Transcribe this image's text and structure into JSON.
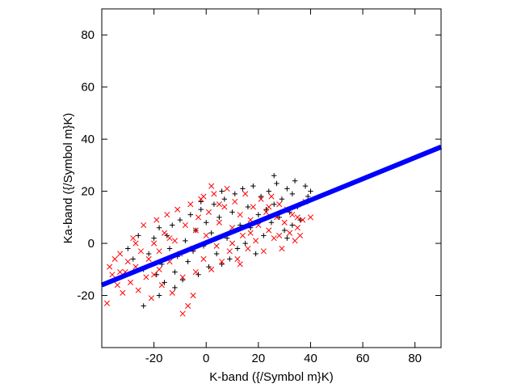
{
  "chart_data": {
    "type": "scatter",
    "title": "",
    "xlabel": "K-band ({/Symbol m}K)",
    "ylabel": "Ka-band ({/Symbol m}K)",
    "xlim": [
      -40,
      90
    ],
    "ylim": [
      -40,
      90
    ],
    "xticks": [
      "-20",
      "0",
      "20",
      "40",
      "60",
      "80"
    ],
    "yticks": [
      "-20",
      "0",
      "20",
      "40",
      "60",
      "80"
    ],
    "xtick_values": [
      -20,
      0,
      20,
      40,
      60,
      80
    ],
    "ytick_values": [
      -20,
      0,
      20,
      40,
      60,
      80
    ],
    "grid": false,
    "legend": "none",
    "series": [
      {
        "marker": "plus",
        "color": "#000000",
        "values": [
          [
            -28,
            -6
          ],
          [
            -24,
            -10
          ],
          [
            -22,
            -4
          ],
          [
            -20,
            2
          ],
          [
            -19,
            -12
          ],
          [
            -18,
            6
          ],
          [
            -17,
            -8
          ],
          [
            -16,
            -15
          ],
          [
            -15,
            3
          ],
          [
            -14,
            -2
          ],
          [
            -13,
            7
          ],
          [
            -12,
            -11
          ],
          [
            -11,
            -5
          ],
          [
            -10,
            9
          ],
          [
            -9,
            -14
          ],
          [
            -8,
            1
          ],
          [
            -7,
            -7
          ],
          [
            -6,
            11
          ],
          [
            -5,
            -3
          ],
          [
            -4,
            5
          ],
          [
            -3,
            -12
          ],
          [
            -2,
            13
          ],
          [
            -1,
            -1
          ],
          [
            0,
            8
          ],
          [
            1,
            -9
          ],
          [
            2,
            4
          ],
          [
            3,
            15
          ],
          [
            4,
            -4
          ],
          [
            5,
            10
          ],
          [
            6,
            -8
          ],
          [
            7,
            17
          ],
          [
            8,
            2
          ],
          [
            9,
            -6
          ],
          [
            10,
            12
          ],
          [
            11,
            19
          ],
          [
            12,
            -2
          ],
          [
            13,
            7
          ],
          [
            14,
            21
          ],
          [
            15,
            0
          ],
          [
            16,
            14
          ],
          [
            17,
            6
          ],
          [
            18,
            22
          ],
          [
            19,
            -4
          ],
          [
            20,
            11
          ],
          [
            21,
            18
          ],
          [
            22,
            3
          ],
          [
            23,
            13
          ],
          [
            24,
            20
          ],
          [
            25,
            8
          ],
          [
            26,
            15
          ],
          [
            27,
            23
          ],
          [
            28,
            10
          ],
          [
            29,
            17
          ],
          [
            30,
            5
          ],
          [
            31,
            21
          ],
          [
            32,
            12
          ],
          [
            33,
            19
          ],
          [
            34,
            24
          ],
          [
            35,
            14
          ],
          [
            36,
            9
          ],
          [
            38,
            22
          ],
          [
            39,
            18
          ],
          [
            40,
            20
          ],
          [
            -24,
            -24
          ],
          [
            -35,
            -14
          ],
          [
            -30,
            -2
          ],
          [
            -26,
            3
          ],
          [
            33,
            7
          ],
          [
            26,
            26
          ],
          [
            31,
            2
          ],
          [
            -18,
            -20
          ],
          [
            -12,
            -17
          ],
          [
            6,
            20
          ],
          [
            -2,
            16
          ]
        ]
      },
      {
        "marker": "cross",
        "color": "#ff0000",
        "values": [
          [
            -38,
            -23
          ],
          [
            -37,
            -9
          ],
          [
            -36,
            -12
          ],
          [
            -35,
            -6
          ],
          [
            -34,
            -16
          ],
          [
            -33,
            -4
          ],
          [
            -32,
            -19
          ],
          [
            -31,
            -11
          ],
          [
            -30,
            -7
          ],
          [
            -29,
            -15
          ],
          [
            -28,
            2
          ],
          [
            -27,
            -9
          ],
          [
            -26,
            -18
          ],
          [
            -25,
            -3
          ],
          [
            -24,
            7
          ],
          [
            -23,
            -13
          ],
          [
            -22,
            -6
          ],
          [
            -21,
            -21
          ],
          [
            -20,
            0
          ],
          [
            -19,
            9
          ],
          [
            -18,
            -10
          ],
          [
            -17,
            -16
          ],
          [
            -16,
            4
          ],
          [
            -15,
            11
          ],
          [
            -14,
            -7
          ],
          [
            -13,
            -19
          ],
          [
            -12,
            1
          ],
          [
            -11,
            13
          ],
          [
            -10,
            -4
          ],
          [
            -9,
            -13
          ],
          [
            -8,
            7
          ],
          [
            -7,
            -24
          ],
          [
            -6,
            15
          ],
          [
            -5,
            -2
          ],
          [
            -4,
            -11
          ],
          [
            -3,
            10
          ],
          [
            -2,
            17
          ],
          [
            -1,
            -6
          ],
          [
            0,
            3
          ],
          [
            1,
            12
          ],
          [
            2,
            -10
          ],
          [
            3,
            19
          ],
          [
            4,
            -1
          ],
          [
            5,
            8
          ],
          [
            6,
            -7
          ],
          [
            7,
            14
          ],
          [
            8,
            21
          ],
          [
            9,
            -3
          ],
          [
            10,
            6
          ],
          [
            11,
            16
          ],
          [
            12,
            -6
          ],
          [
            13,
            11
          ],
          [
            14,
            3
          ],
          [
            15,
            19
          ],
          [
            16,
            -2
          ],
          [
            17,
            9
          ],
          [
            18,
            14
          ],
          [
            19,
            1
          ],
          [
            20,
            7
          ],
          [
            21,
            17
          ],
          [
            22,
            -3
          ],
          [
            23,
            12
          ],
          [
            24,
            5
          ],
          [
            25,
            18
          ],
          [
            26,
            2
          ],
          [
            27,
            10
          ],
          [
            28,
            15
          ],
          [
            29,
            -2
          ],
          [
            30,
            8
          ],
          [
            31,
            13
          ],
          [
            32,
            4
          ],
          [
            33,
            11
          ],
          [
            34,
            1
          ],
          [
            35,
            6
          ],
          [
            36,
            3
          ],
          [
            37,
            9
          ],
          [
            38,
            16
          ],
          [
            40,
            10
          ],
          [
            -9,
            -27
          ],
          [
            -5,
            -20
          ],
          [
            2,
            22
          ],
          [
            -27,
            0
          ],
          [
            -33,
            -11
          ],
          [
            28,
            3
          ],
          [
            24,
            14
          ],
          [
            -1,
            18
          ],
          [
            5,
            15
          ],
          [
            -20,
            -12
          ],
          [
            13,
            -8
          ],
          [
            35,
            10
          ],
          [
            -14,
            2
          ],
          [
            10,
            0
          ],
          [
            -4,
            5
          ],
          [
            17,
            4
          ],
          [
            -18,
            -3
          ]
        ]
      }
    ],
    "fit_line": {
      "color": "#0000ff",
      "points": [
        [
          -40,
          -16
        ],
        [
          90,
          37
        ]
      ]
    }
  }
}
